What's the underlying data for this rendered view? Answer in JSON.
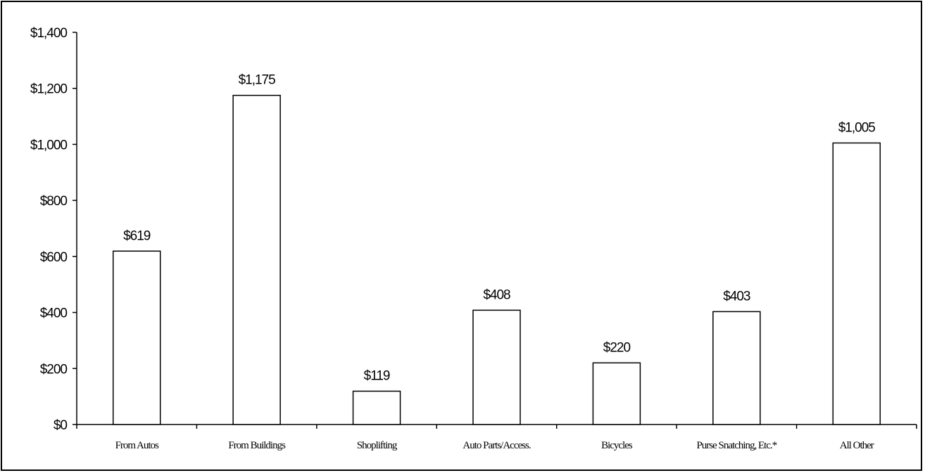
{
  "chart_data": {
    "type": "bar",
    "title": "",
    "xlabel": "",
    "ylabel": "",
    "categories": [
      "From Autos",
      "From Buildings",
      "Shoplifting",
      "Auto Parts/Access.",
      "Bicycles",
      "Purse Snatching, Etc.*",
      "All Other"
    ],
    "values": [
      619,
      1175,
      119,
      408,
      220,
      403,
      1005
    ],
    "data_labels": [
      "$619",
      "$1,175",
      "$119",
      "$408",
      "$220",
      "$403",
      "$1,005"
    ],
    "ylim": [
      0,
      1400
    ],
    "yticks": [
      0,
      200,
      400,
      600,
      800,
      1000,
      1200,
      1400
    ],
    "ytick_labels": [
      "$0",
      "$200",
      "$400",
      "$600",
      "$800",
      "$1,000",
      "$1,200",
      "$1,400"
    ],
    "grid": false,
    "legend": "none",
    "colors": {
      "bar_fill": "#ffffff",
      "bar_stroke": "#000000",
      "axis": "#000000"
    }
  }
}
